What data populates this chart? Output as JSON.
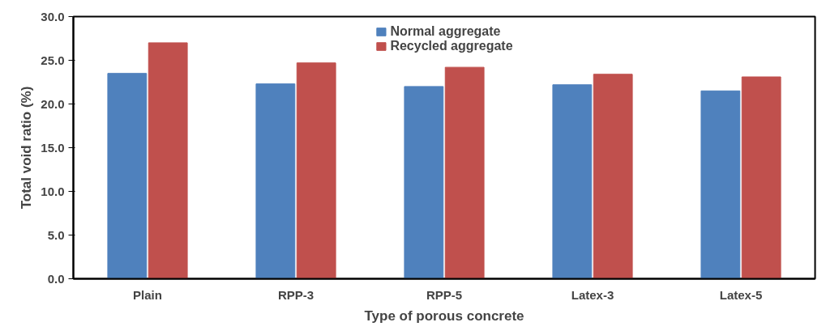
{
  "chart_data": {
    "type": "bar",
    "xlabel": "Type of porous concrete",
    "ylabel": "Total void ratio (%)",
    "categories": [
      "Plain",
      "RPP-3",
      "RPP-5",
      "Latex-3",
      "Latex-5"
    ],
    "series": [
      {
        "name": "Normal aggregate",
        "color": "#4f81bd",
        "values": [
          23.5,
          22.3,
          22.0,
          22.2,
          21.5
        ]
      },
      {
        "name": "Recycled aggregate",
        "color": "#c0504d",
        "values": [
          27.0,
          24.7,
          24.2,
          23.4,
          23.1
        ]
      }
    ],
    "ylim": [
      0,
      30
    ],
    "yticks": [
      {
        "value": 0,
        "label": "0.0"
      },
      {
        "value": 5,
        "label": "5.0"
      },
      {
        "value": 10,
        "label": "10.0"
      },
      {
        "value": 15,
        "label": "15.0"
      },
      {
        "value": 20,
        "label": "20.0"
      },
      {
        "value": 25,
        "label": "25.0"
      },
      {
        "value": 30,
        "label": "30.0"
      }
    ],
    "grid": false,
    "legend": "top"
  }
}
